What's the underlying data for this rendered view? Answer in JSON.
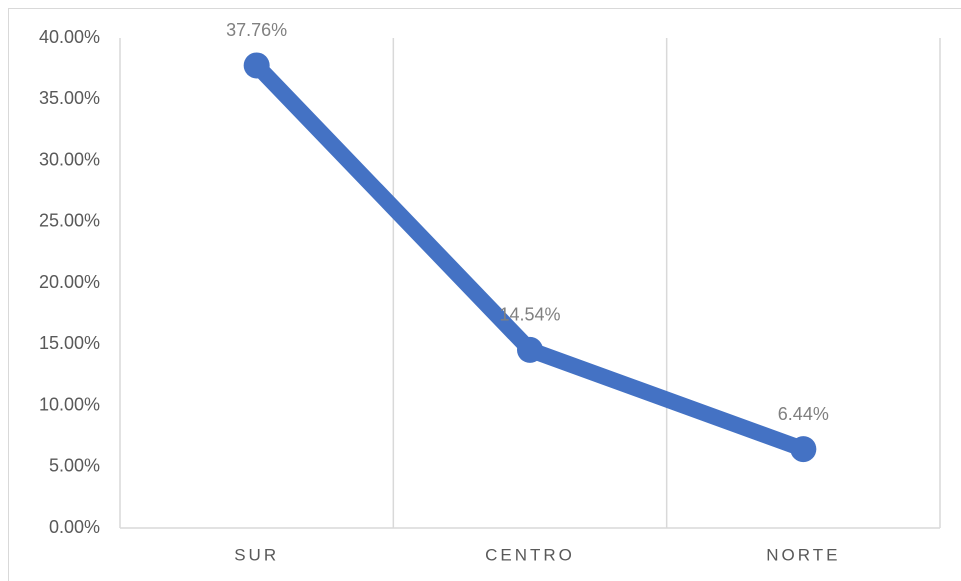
{
  "chart_data": {
    "type": "line",
    "categories": [
      "SUR",
      "CENTRO",
      "NORTE"
    ],
    "series": [
      {
        "color": "#4472c4",
        "values": [
          37.76,
          14.54,
          6.44
        ],
        "value_labels": [
          "37.76%",
          "14.54%",
          "6.44%"
        ]
      }
    ],
    "ylim": [
      0,
      40
    ],
    "yticks": [
      {
        "value": 0,
        "label": "0.00%"
      },
      {
        "value": 5,
        "label": "5.00%"
      },
      {
        "value": 10,
        "label": "10.00%"
      },
      {
        "value": 15,
        "label": "15.00%"
      },
      {
        "value": 20,
        "label": "20.00%"
      },
      {
        "value": 25,
        "label": "25.00%"
      },
      {
        "value": 30,
        "label": "30.00%"
      },
      {
        "value": 35,
        "label": "35.00%"
      },
      {
        "value": 40,
        "label": "40.00%"
      }
    ],
    "grid": true
  }
}
